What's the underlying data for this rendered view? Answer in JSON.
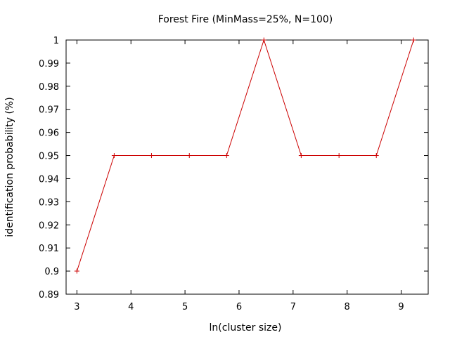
{
  "chart_data": {
    "type": "line",
    "title": "Forest Fire (MinMass=25%, N=100)",
    "xlabel": "ln(cluster size)",
    "ylabel": "identification probability (%)",
    "xlim": [
      2.8,
      9.5
    ],
    "ylim": [
      0.89,
      1.0
    ],
    "xticks": [
      3,
      4,
      5,
      6,
      7,
      8,
      9
    ],
    "xtick_labels": [
      "3",
      "4",
      "5",
      "6",
      "7",
      "8",
      "9"
    ],
    "yticks": [
      0.89,
      0.9,
      0.91,
      0.92,
      0.93,
      0.94,
      0.95,
      0.96,
      0.97,
      0.98,
      0.99,
      1.0
    ],
    "ytick_labels": [
      "0.89",
      "0.9",
      "0.91",
      "0.92",
      "0.93",
      "0.94",
      "0.95",
      "0.96",
      "0.97",
      "0.98",
      "0.99",
      "1"
    ],
    "grid": false,
    "legend": "none",
    "marker": "plus",
    "series": [
      {
        "color": "#cc0000",
        "x": [
          3.0,
          3.69,
          4.38,
          5.08,
          5.77,
          6.46,
          7.15,
          7.85,
          8.54,
          9.23
        ],
        "y": [
          0.9,
          0.95,
          0.95,
          0.95,
          0.95,
          1.0,
          0.95,
          0.95,
          0.95,
          1.0
        ]
      }
    ]
  }
}
